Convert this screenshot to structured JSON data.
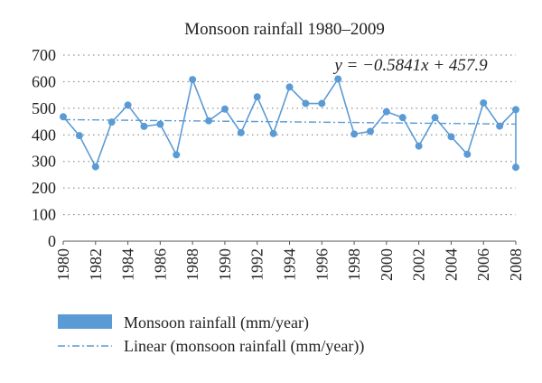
{
  "chart_data": {
    "type": "line",
    "title": "Monsoon rainfall 1980–2009",
    "xlabel": "",
    "ylabel": "",
    "ylim": [
      0,
      700
    ],
    "xlim": [
      1980,
      2008
    ],
    "yticks": [
      0,
      100,
      200,
      300,
      400,
      500,
      600,
      700
    ],
    "xticks": [
      1980,
      1982,
      1984,
      1986,
      1988,
      1990,
      1992,
      1994,
      1996,
      1998,
      2000,
      2002,
      2004,
      2006,
      2008
    ],
    "grid": "horizontal-dotted",
    "legend_position": "bottom",
    "series": [
      {
        "name": "Monsoon rainfall (mm/year)",
        "color": "#5b9bd5",
        "x": [
          1980,
          1981,
          1982,
          1983,
          1984,
          1985,
          1986,
          1987,
          1988,
          1989,
          1990,
          1991,
          1992,
          1993,
          1994,
          1995,
          1996,
          1997,
          1998,
          1999,
          2000,
          2001,
          2002,
          2003,
          2004,
          2005,
          2006,
          2007,
          2008,
          2009
        ],
        "values": [
          468,
          397,
          280,
          448,
          512,
          432,
          440,
          325,
          608,
          453,
          497,
          408,
          543,
          405,
          580,
          518,
          518,
          610,
          403,
          413,
          487,
          465,
          358,
          465,
          393,
          327,
          520,
          433,
          495,
          278
        ]
      }
    ],
    "trendline": {
      "name": "Linear (monsoon rainfall (mm/year))",
      "color": "#5b9bd5",
      "slope": -0.5841,
      "intercept": 457.9,
      "equation": "y = −0.5841x + 457.9"
    }
  }
}
